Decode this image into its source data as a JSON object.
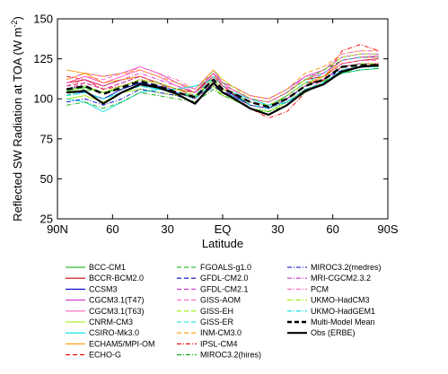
{
  "chart_data": {
    "type": "line",
    "title": "",
    "xlabel": "Latitude",
    "ylabel": "Reflected SW Radiation at TOA (W m",
    "ylabel_sup": "-2",
    "ylabel_close": ")",
    "xlim": [
      90,
      -90
    ],
    "ylim": [
      25,
      150
    ],
    "y_ticks": [
      25,
      50,
      75,
      100,
      125,
      150
    ],
    "x_ticks": [
      90,
      60,
      30,
      0,
      -30,
      -60,
      -90
    ],
    "x_tick_labels": [
      "90N",
      "60",
      "30",
      "EQ",
      "30",
      "60",
      "90S"
    ],
    "grid": false,
    "legend_position": "bottom",
    "x": [
      85,
      75,
      65,
      55,
      45,
      35,
      25,
      15,
      5,
      0,
      -5,
      -15,
      -25,
      -35,
      -45,
      -55,
      -65,
      -75,
      -85
    ],
    "series": [
      {
        "name": "BCC-CM1",
        "color": "#00aa00",
        "dash": "solid",
        "values": [
          105,
          107,
          104,
          106,
          110,
          107,
          104,
          101,
          112,
          106,
          104,
          96,
          94,
          102,
          110,
          111,
          116,
          120,
          121
        ]
      },
      {
        "name": "BCCR-BCM2.0",
        "color": "#d00000",
        "dash": "solid",
        "values": [
          110,
          112,
          108,
          112,
          114,
          110,
          106,
          104,
          114,
          108,
          106,
          100,
          98,
          104,
          112,
          114,
          122,
          124,
          125
        ]
      },
      {
        "name": "CCSM3",
        "color": "#0000cc",
        "dash": "solid",
        "values": [
          104,
          104,
          100,
          106,
          110,
          108,
          104,
          100,
          110,
          104,
          103,
          96,
          94,
          100,
          108,
          112,
          120,
          122,
          122
        ]
      },
      {
        "name": "CGCM3.1(T47)",
        "color": "#cc33cc",
        "dash": "solid",
        "values": [
          112,
          116,
          114,
          116,
          120,
          116,
          110,
          106,
          118,
          110,
          108,
          102,
          100,
          106,
          114,
          118,
          126,
          128,
          128
        ]
      },
      {
        "name": "CGCM3.1(T63)",
        "color": "#ff66bb",
        "dash": "solid",
        "values": [
          110,
          114,
          110,
          114,
          118,
          114,
          108,
          104,
          116,
          108,
          106,
          100,
          98,
          104,
          112,
          116,
          124,
          126,
          127
        ]
      },
      {
        "name": "CNRM-CM3",
        "color": "#99ee00",
        "dash": "solid",
        "values": [
          100,
          102,
          98,
          104,
          106,
          104,
          102,
          98,
          108,
          102,
          100,
          94,
          92,
          98,
          106,
          110,
          118,
          120,
          120
        ]
      },
      {
        "name": "CSIRO-Mk3.0",
        "color": "#00dddd",
        "dash": "solid",
        "values": [
          100,
          98,
          92,
          98,
          104,
          106,
          106,
          108,
          112,
          106,
          104,
          100,
          96,
          98,
          104,
          110,
          116,
          118,
          119
        ]
      },
      {
        "name": "ECHAM5/MPI-OM",
        "color": "#ff9900",
        "dash": "solid",
        "values": [
          118,
          116,
          110,
          112,
          114,
          110,
          104,
          100,
          110,
          104,
          102,
          96,
          94,
          100,
          108,
          114,
          124,
          126,
          126
        ]
      },
      {
        "name": "ECHO-G",
        "color": "#ee0000",
        "dash": "dashed",
        "values": [
          108,
          110,
          106,
          110,
          114,
          110,
          106,
          102,
          112,
          106,
          104,
          98,
          96,
          102,
          110,
          112,
          120,
          122,
          122
        ]
      },
      {
        "name": "FGOALS-g1.0",
        "color": "#00aa00",
        "dash": "dashed",
        "values": [
          102,
          106,
          104,
          108,
          112,
          110,
          106,
          104,
          116,
          110,
          106,
          100,
          98,
          104,
          112,
          118,
          124,
          126,
          126
        ]
      },
      {
        "name": "GFDL-CM2.0",
        "color": "#0000cc",
        "dash": "dashed",
        "values": [
          106,
          108,
          104,
          108,
          112,
          110,
          104,
          100,
          110,
          104,
          102,
          96,
          94,
          100,
          108,
          112,
          118,
          120,
          121
        ]
      },
      {
        "name": "GFDL-CM2.1",
        "color": "#cc33cc",
        "dash": "dashed",
        "values": [
          106,
          110,
          106,
          110,
          114,
          110,
          104,
          100,
          110,
          104,
          102,
          96,
          94,
          100,
          108,
          112,
          120,
          122,
          122
        ]
      },
      {
        "name": "GISS-AOM",
        "color": "#ff66bb",
        "dash": "dashed",
        "values": [
          110,
          114,
          112,
          116,
          120,
          116,
          110,
          104,
          112,
          106,
          104,
          98,
          96,
          102,
          110,
          114,
          122,
          124,
          124
        ]
      },
      {
        "name": "GISS-EH",
        "color": "#99ee00",
        "dash": "dashed",
        "values": [
          104,
          108,
          104,
          108,
          112,
          110,
          106,
          104,
          118,
          112,
          108,
          100,
          98,
          104,
          112,
          118,
          126,
          128,
          128
        ]
      },
      {
        "name": "GISS-ER",
        "color": "#00dddd",
        "dash": "dashed",
        "values": [
          102,
          104,
          100,
          104,
          108,
          106,
          104,
          102,
          114,
          108,
          104,
          98,
          96,
          102,
          110,
          116,
          124,
          126,
          126
        ]
      },
      {
        "name": "INM-CM3.0",
        "color": "#ff9900",
        "dash": "dashed",
        "values": [
          112,
          116,
          114,
          116,
          118,
          114,
          110,
          106,
          118,
          112,
          108,
          102,
          100,
          106,
          116,
          120,
          128,
          130,
          130
        ]
      },
      {
        "name": "IPSL-CM4",
        "color": "#ee0000",
        "dash": "dashdot",
        "values": [
          114,
          112,
          106,
          108,
          112,
          110,
          106,
          104,
          116,
          108,
          104,
          94,
          88,
          92,
          104,
          112,
          130,
          134,
          130
        ]
      },
      {
        "name": "MIROC3.2(hires)",
        "color": "#00aa00",
        "dash": "dashdot",
        "values": [
          96,
          98,
          94,
          98,
          104,
          102,
          100,
          98,
          106,
          102,
          100,
          94,
          92,
          96,
          104,
          110,
          116,
          118,
          119
        ]
      },
      {
        "name": "MIROC3.2(medres)",
        "color": "#0000cc",
        "dash": "dashdot",
        "values": [
          98,
          100,
          96,
          100,
          106,
          104,
          102,
          98,
          108,
          104,
          102,
          96,
          94,
          98,
          106,
          110,
          118,
          120,
          120
        ]
      },
      {
        "name": "MRI-CGCM2.3.2",
        "color": "#cc33cc",
        "dash": "dashdot",
        "values": [
          108,
          112,
          108,
          112,
          116,
          112,
          108,
          104,
          116,
          110,
          106,
          100,
          98,
          104,
          114,
          116,
          124,
          126,
          126
        ]
      },
      {
        "name": "PCM",
        "color": "#ff66bb",
        "dash": "dashdot",
        "values": [
          110,
          114,
          110,
          114,
          120,
          116,
          112,
          106,
          116,
          110,
          106,
          100,
          98,
          104,
          114,
          118,
          128,
          130,
          130
        ]
      },
      {
        "name": "UKMO-HadCM3",
        "color": "#99ee00",
        "dash": "dashdot",
        "values": [
          106,
          108,
          104,
          108,
          112,
          110,
          106,
          102,
          112,
          106,
          104,
          98,
          96,
          102,
          110,
          114,
          120,
          122,
          122
        ]
      },
      {
        "name": "UKMO-HadGEM1",
        "color": "#00dddd",
        "dash": "dashdot",
        "values": [
          102,
          104,
          100,
          104,
          108,
          106,
          104,
          100,
          110,
          104,
          102,
          96,
          94,
          98,
          106,
          110,
          118,
          120,
          120
        ]
      },
      {
        "name": "Multi-Model Mean",
        "color": "#000000",
        "dash": "heavy-dashed",
        "values": [
          106,
          108,
          103,
          107,
          111,
          108,
          104,
          101,
          112,
          106,
          104,
          98,
          95,
          100,
          108,
          112,
          120,
          121,
          121
        ]
      },
      {
        "name": "Obs (ERBE)",
        "color": "#000000",
        "dash": "heavy-solid",
        "values": [
          104,
          105,
          97,
          104,
          109,
          107,
          103,
          97,
          110,
          104,
          101,
          94,
          90,
          96,
          105,
          109,
          117,
          120,
          121
        ]
      }
    ]
  }
}
